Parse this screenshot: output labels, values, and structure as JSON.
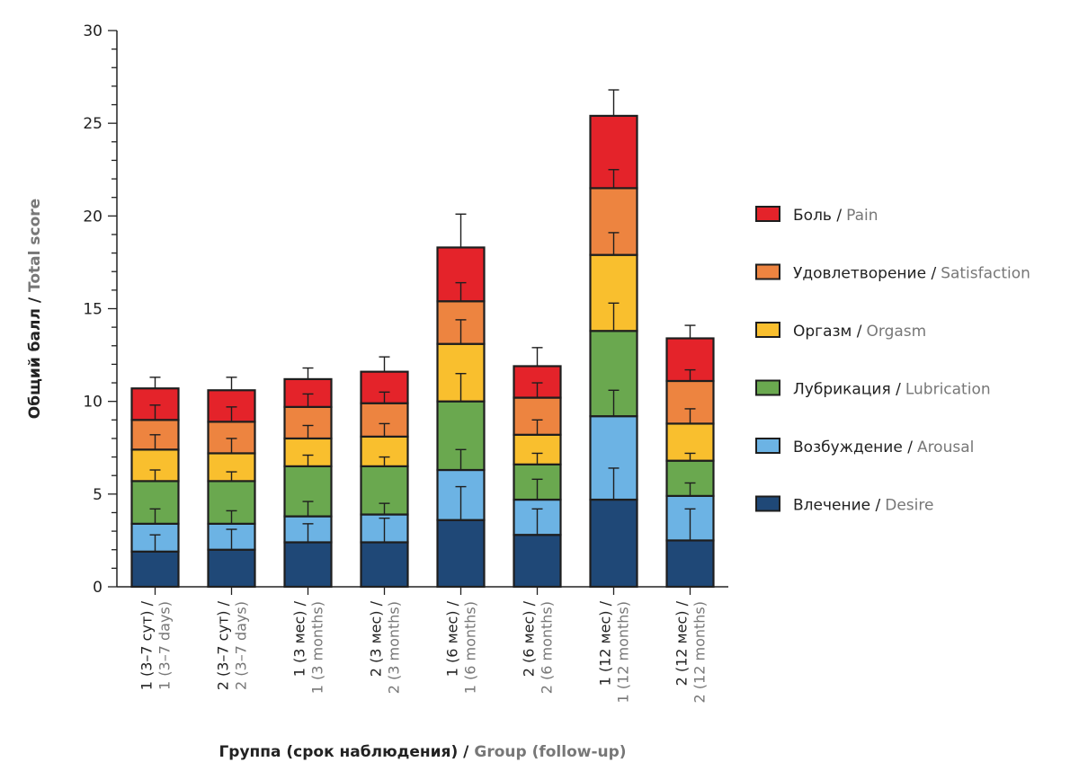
{
  "chart_data": {
    "type": "bar",
    "stacked": true,
    "xlabel": {
      "ru": "Группа (срок наблюдения) /",
      "en": "Group (follow-up)"
    },
    "ylabel": {
      "ru": "Общий балл /",
      "en": "Total score"
    },
    "ylim": [
      0,
      30
    ],
    "yticks": [
      0,
      5,
      10,
      15,
      20,
      25,
      30
    ],
    "grid": false,
    "legend_position": "right",
    "categories": [
      {
        "ru": "1 (3–7 сут) /",
        "en": "1 (3–7 days)"
      },
      {
        "ru": "2 (3–7 сут) /",
        "en": "2 (3–7 days)"
      },
      {
        "ru": "1 (3 мес) /",
        "en": "1 (3 months)"
      },
      {
        "ru": "2 (3 мес) /",
        "en": "2 (3 months)"
      },
      {
        "ru": "1 (6 мес) /",
        "en": "1 (6 months)"
      },
      {
        "ru": "2 (6 мес) /",
        "en": "2 (6 months)"
      },
      {
        "ru": "1 (12 мес) /",
        "en": "1 (12 months)"
      },
      {
        "ru": "2 (12 мес) /",
        "en": "2 (12 months)"
      }
    ],
    "series": [
      {
        "name": "Влечение / Desire",
        "name_ru": "Влечение /",
        "name_en": "Desire",
        "color": "#1f4877",
        "values": [
          1.9,
          2.0,
          2.4,
          2.4,
          3.6,
          2.8,
          4.7,
          2.5
        ],
        "errors": [
          0.9,
          1.1,
          1.0,
          1.3,
          1.8,
          1.4,
          1.7,
          1.7
        ]
      },
      {
        "name": "Возбуждение / Arousal",
        "name_ru": "Возбуждение /",
        "name_en": "Arousal",
        "color": "#6cb3e4",
        "values": [
          1.5,
          1.4,
          1.4,
          1.5,
          2.7,
          1.9,
          4.5,
          2.4
        ],
        "errors": [
          0.8,
          0.7,
          0.8,
          0.6,
          1.1,
          1.1,
          1.4,
          0.7
        ]
      },
      {
        "name": "Лубрикация / Lubrication",
        "name_ru": "Лубрикация /",
        "name_en": "Lubrication",
        "color": "#6aa84f",
        "values": [
          2.3,
          2.3,
          2.7,
          2.6,
          3.7,
          1.9,
          4.6,
          1.9
        ],
        "errors": [
          0.6,
          0.5,
          0.6,
          0.5,
          1.5,
          0.6,
          1.5,
          0.4
        ]
      },
      {
        "name": "Оргазм / Orgasm",
        "name_ru": "Оргазм /",
        "name_en": "Orgasm",
        "color": "#f9bf2e",
        "values": [
          1.7,
          1.5,
          1.5,
          1.6,
          3.1,
          1.6,
          4.1,
          2.0
        ],
        "errors": [
          0.8,
          0.8,
          0.7,
          0.7,
          1.3,
          0.8,
          1.2,
          0.8
        ]
      },
      {
        "name": "Удовлетворение / Satisfaction",
        "name_ru": "Удовлетворение /",
        "name_en": "Satisfaction",
        "color": "#ed8440",
        "values": [
          1.6,
          1.7,
          1.7,
          1.8,
          2.3,
          2.0,
          3.6,
          2.3
        ],
        "errors": [
          0.8,
          0.8,
          0.7,
          0.6,
          1.0,
          0.8,
          1.0,
          0.6
        ]
      },
      {
        "name": "Боль / Pain",
        "name_ru": "Боль /",
        "name_en": "Pain",
        "color": "#e4232a",
        "values": [
          1.7,
          1.7,
          1.5,
          1.7,
          2.9,
          1.7,
          3.9,
          2.3
        ],
        "errors": [
          0.6,
          0.7,
          0.6,
          0.8,
          1.8,
          1.0,
          1.4,
          0.7
        ]
      }
    ]
  }
}
